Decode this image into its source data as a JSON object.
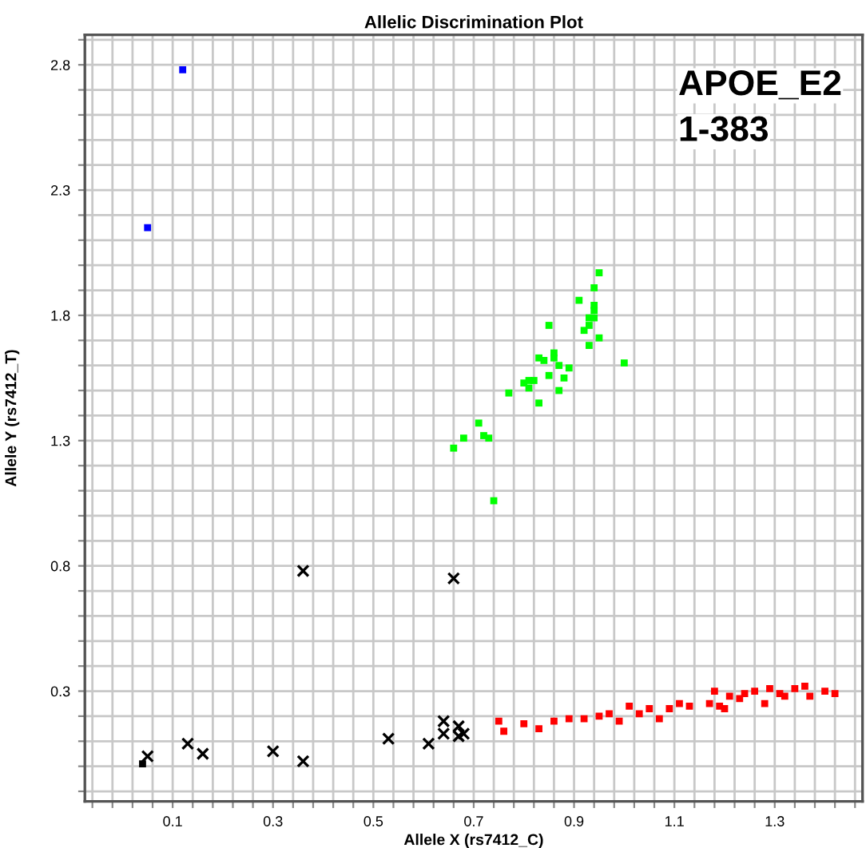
{
  "chart_data": {
    "type": "scatter",
    "title": "Allelic Discrimination Plot",
    "xlabel": "Allele X (rs7412_C)",
    "ylabel": "Allele Y (rs7412_T)",
    "annotations": [
      "APOE_E2",
      "1-383"
    ],
    "xlim": [
      -0.075,
      1.475
    ],
    "ylim": [
      -0.14,
      2.92
    ],
    "xticks": [
      {
        "value": -0.06,
        "label": null
      },
      {
        "value": -0.02,
        "label": null
      },
      {
        "value": 0.02,
        "label": null
      },
      {
        "value": 0.06,
        "label": null
      },
      0.1,
      {
        "value": 0.14,
        "label": null
      },
      {
        "value": 0.18,
        "label": null
      },
      {
        "value": 0.22,
        "label": null
      },
      {
        "value": 0.26,
        "label": null
      },
      0.3,
      {
        "value": 0.34,
        "label": null
      },
      {
        "value": 0.38,
        "label": null
      },
      {
        "value": 0.42,
        "label": null
      },
      {
        "value": 0.46,
        "label": null
      },
      0.5,
      {
        "value": 0.54,
        "label": null
      },
      {
        "value": 0.58,
        "label": null
      },
      {
        "value": 0.62,
        "label": null
      },
      {
        "value": 0.66,
        "label": null
      },
      0.7,
      {
        "value": 0.74,
        "label": null
      },
      {
        "value": 0.78,
        "label": null
      },
      {
        "value": 0.82,
        "label": null
      },
      {
        "value": 0.86,
        "label": null
      },
      0.9,
      {
        "value": 0.94,
        "label": null
      },
      {
        "value": 0.98,
        "label": null
      },
      {
        "value": 1.02,
        "label": null
      },
      {
        "value": 1.06,
        "label": null
      },
      1.1,
      {
        "value": 1.14,
        "label": null
      },
      {
        "value": 1.18,
        "label": null
      },
      {
        "value": 1.22,
        "label": null
      },
      {
        "value": 1.26,
        "label": null
      },
      1.3,
      {
        "value": 1.34,
        "label": null
      },
      {
        "value": 1.38,
        "label": null
      },
      {
        "value": 1.42,
        "label": null
      },
      {
        "value": 1.46,
        "label": null
      }
    ],
    "yticks": [
      {
        "value": -0.1,
        "label": null
      },
      {
        "value": 0.0,
        "label": null
      },
      {
        "value": 0.1,
        "label": null
      },
      {
        "value": 0.2,
        "label": null
      },
      0.3,
      {
        "value": 0.4,
        "label": null
      },
      {
        "value": 0.5,
        "label": null
      },
      {
        "value": 0.6,
        "label": null
      },
      {
        "value": 0.7,
        "label": null
      },
      0.8,
      {
        "value": 0.9,
        "label": null
      },
      {
        "value": 1.0,
        "label": null
      },
      {
        "value": 1.1,
        "label": null
      },
      {
        "value": 1.2,
        "label": null
      },
      1.3,
      {
        "value": 1.4,
        "label": null
      },
      {
        "value": 1.5,
        "label": null
      },
      {
        "value": 1.6,
        "label": null
      },
      {
        "value": 1.7,
        "label": null
      },
      1.8,
      {
        "value": 1.9,
        "label": null
      },
      {
        "value": 2.0,
        "label": null
      },
      {
        "value": 2.1,
        "label": null
      },
      {
        "value": 2.2,
        "label": null
      },
      2.3,
      {
        "value": 2.4,
        "label": null
      },
      {
        "value": 2.5,
        "label": null
      },
      {
        "value": 2.6,
        "label": null
      },
      {
        "value": 2.7,
        "label": null
      },
      2.8,
      {
        "value": 2.9,
        "label": null
      }
    ],
    "grid": true,
    "series": [
      {
        "color": "#0000ff",
        "marker": "square",
        "x": [
          0.12,
          0.05
        ],
        "values": [
          2.78,
          2.15
        ]
      },
      {
        "color": "#00ff00",
        "marker": "square",
        "x": [
          0.95,
          0.94,
          0.91,
          0.94,
          0.94,
          0.93,
          0.94,
          0.92,
          0.93,
          0.85,
          0.95,
          0.93,
          1.0,
          0.83,
          0.84,
          0.86,
          0.86,
          0.87,
          0.89,
          0.85,
          0.88,
          0.8,
          0.81,
          0.82,
          0.81,
          0.87,
          0.77,
          0.83,
          0.71,
          0.68,
          0.72,
          0.73,
          0.66,
          0.74
        ],
        "values": [
          1.97,
          1.91,
          1.86,
          1.84,
          1.82,
          1.79,
          1.79,
          1.74,
          1.76,
          1.76,
          1.71,
          1.68,
          1.61,
          1.63,
          1.62,
          1.65,
          1.63,
          1.6,
          1.59,
          1.56,
          1.55,
          1.53,
          1.54,
          1.54,
          1.51,
          1.5,
          1.49,
          1.45,
          1.37,
          1.31,
          1.32,
          1.31,
          1.27,
          1.06
        ]
      },
      {
        "color": "#ff0000",
        "marker": "square",
        "x": [
          0.75,
          0.76,
          0.8,
          0.83,
          0.86,
          0.89,
          0.92,
          0.97,
          0.99,
          1.01,
          1.03,
          1.07,
          1.09,
          1.13,
          1.17,
          1.18,
          1.2,
          1.23,
          1.26,
          1.28,
          1.31,
          1.34,
          1.36,
          1.37,
          1.4,
          1.42,
          1.11,
          1.21,
          1.24,
          1.29,
          1.32,
          1.19,
          1.05,
          0.95
        ],
        "values": [
          0.18,
          0.14,
          0.17,
          0.15,
          0.18,
          0.19,
          0.19,
          0.21,
          0.18,
          0.24,
          0.21,
          0.19,
          0.23,
          0.24,
          0.25,
          0.3,
          0.23,
          0.27,
          0.3,
          0.25,
          0.29,
          0.31,
          0.32,
          0.28,
          0.3,
          0.29,
          0.25,
          0.28,
          0.29,
          0.31,
          0.28,
          0.24,
          0.23,
          0.2
        ]
      },
      {
        "color": "#000000",
        "marker": "cross",
        "x": [
          0.36,
          0.66,
          0.05,
          0.13,
          0.16,
          0.3,
          0.36,
          0.53,
          0.61,
          0.64,
          0.64,
          0.67,
          0.68,
          0.67
        ],
        "values": [
          0.78,
          0.75,
          0.04,
          0.09,
          0.05,
          0.06,
          0.02,
          0.11,
          0.09,
          0.18,
          0.13,
          0.16,
          0.13,
          0.12
        ]
      },
      {
        "color": "#000000",
        "marker": "square",
        "x": [
          0.04
        ],
        "values": [
          0.01
        ]
      }
    ]
  }
}
